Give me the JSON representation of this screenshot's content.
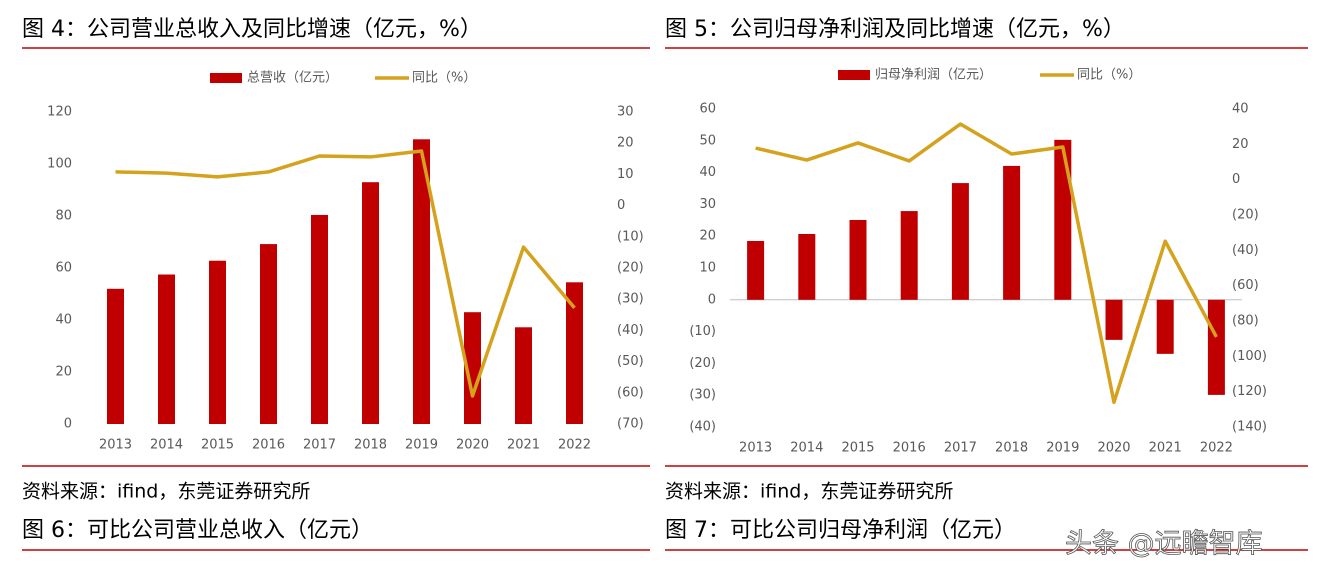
{
  "chart_data": [
    {
      "type": "combo",
      "title": "图 4：公司营业总收入及同比增速（亿元，%）",
      "source": "资料来源：ifind，东莞证券研究所",
      "categories": [
        "2013",
        "2014",
        "2015",
        "2016",
        "2017",
        "2018",
        "2019",
        "2020",
        "2021",
        "2022"
      ],
      "series": [
        {
          "name": "总营收（亿元）",
          "type": "bar",
          "color": "#c00000",
          "axis": "y",
          "values": [
            52,
            57.5,
            62.8,
            69.2,
            80.4,
            93,
            109.5,
            43,
            37.2,
            54.5
          ]
        },
        {
          "name": "同比（%）",
          "type": "line",
          "color": "#d4a21c",
          "axis": "y2",
          "values": [
            10.8,
            10.4,
            9.2,
            10.8,
            15.9,
            15.6,
            17.5,
            -61,
            -13.3,
            -32.8
          ]
        }
      ],
      "ylim": [
        0,
        120
      ],
      "yticks": [
        0,
        20,
        40,
        60,
        80,
        100,
        120
      ],
      "y2lim": [
        -70,
        30
      ],
      "y2ticks": [
        {
          "value": -70,
          "label": "(70)"
        },
        {
          "value": -60,
          "label": "(60)"
        },
        {
          "value": -50,
          "label": "(50)"
        },
        {
          "value": -40,
          "label": "(40)"
        },
        {
          "value": -30,
          "label": "(30)"
        },
        {
          "value": -20,
          "label": "(20)"
        },
        {
          "value": -10,
          "label": "(10)"
        },
        0,
        10,
        20,
        30
      ],
      "negative_tick_color": "#ff0000",
      "zero_line": false,
      "legend": "top"
    },
    {
      "type": "combo",
      "title": "图 5：公司归母净利润及同比增速（亿元，%）",
      "source": "资料来源：ifind，东莞证券研究所",
      "categories": [
        "2013",
        "2014",
        "2015",
        "2016",
        "2017",
        "2018",
        "2019",
        "2020",
        "2021",
        "2022"
      ],
      "series": [
        {
          "name": "归母净利润（亿元）",
          "type": "bar",
          "color": "#c00000",
          "axis": "y",
          "values": [
            18.5,
            20.7,
            25.1,
            27.9,
            36.7,
            42.1,
            50.3,
            -12.6,
            -17,
            -29.9
          ]
        },
        {
          "name": "同比（%）",
          "type": "line",
          "color": "#d4a21c",
          "axis": "y2",
          "values": [
            17.9,
            11.1,
            20.8,
            10.6,
            31.5,
            14.5,
            18.5,
            -126,
            -34.8,
            -89
          ]
        }
      ],
      "ylim": [
        -40,
        60
      ],
      "yticks": [
        {
          "value": -40,
          "label": "(40)"
        },
        {
          "value": -30,
          "label": "(30)"
        },
        {
          "value": -20,
          "label": "(20)"
        },
        {
          "value": -10,
          "label": "(10)"
        },
        0,
        10,
        20,
        30,
        40,
        50,
        60
      ],
      "y2lim": [
        -140,
        40
      ],
      "y2ticks": [
        {
          "value": -140,
          "label": "(140)"
        },
        {
          "value": -120,
          "label": "(120)"
        },
        {
          "value": -100,
          "label": "(100)"
        },
        {
          "value": -80,
          "label": "(80)"
        },
        {
          "value": -60,
          "label": "(60)"
        },
        {
          "value": -40,
          "label": "(40)"
        },
        {
          "value": -20,
          "label": "(20)"
        },
        0,
        20,
        40
      ],
      "negative_tick_color": "#ff0000",
      "zero_line": true,
      "legend": "top"
    }
  ],
  "next_figure_titles": [
    "图 6：可比公司营业总收入（亿元）",
    "图 7：可比公司归母净利润（亿元）"
  ],
  "watermark": "头条 @远瞻智库"
}
